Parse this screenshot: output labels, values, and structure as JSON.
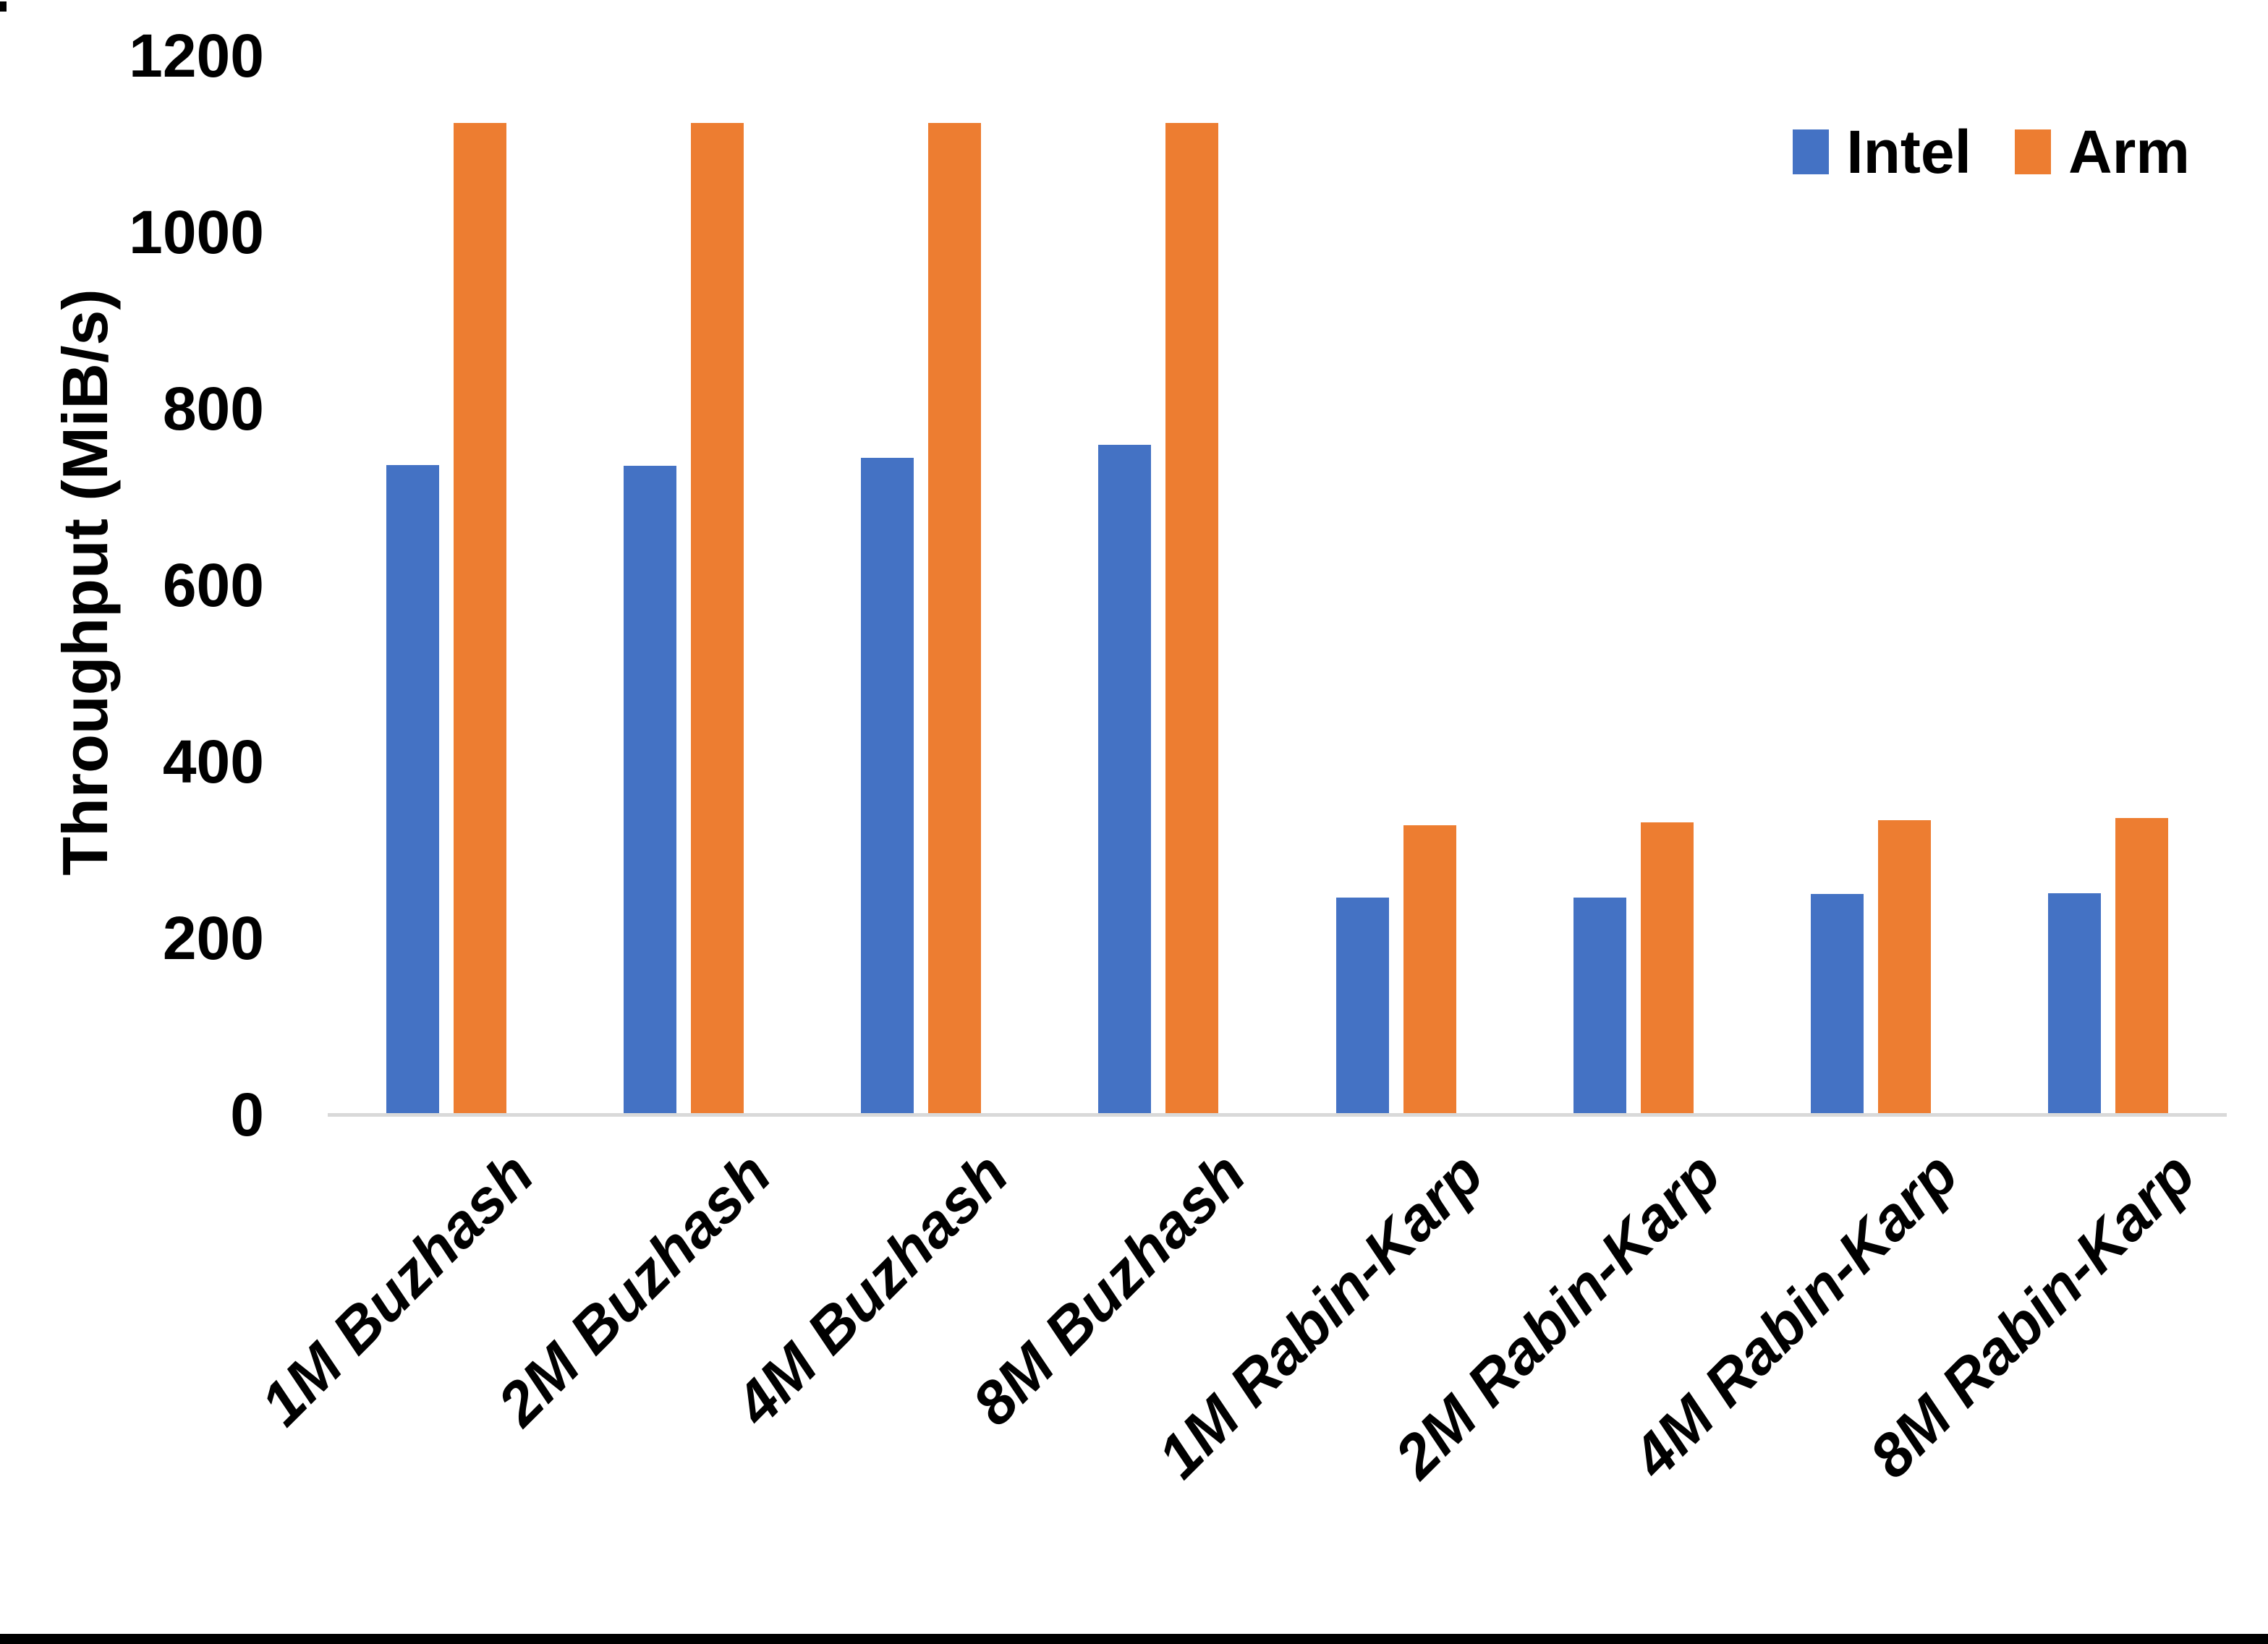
{
  "chart_data": {
    "type": "bar",
    "title": "",
    "xlabel": "",
    "ylabel": "Throughput (MiB/s)",
    "categories": [
      "1M Buzhash",
      "2M Buzhash",
      "4M Buzhash",
      "8M Buzhash",
      "1M Rabin-Karp",
      "2M Rabin-Karp",
      "4M Rabin-Karp",
      "8M Rabin-Karp"
    ],
    "series": [
      {
        "name": "Intel",
        "color": "#4472C4",
        "values": [
          736,
          735,
          744,
          759,
          246,
          246,
          250,
          251
        ]
      },
      {
        "name": "Arm",
        "color": "#ED7D31",
        "values": [
          1124,
          1124,
          1124,
          1124,
          328,
          331,
          334,
          336
        ]
      }
    ],
    "ylim": [
      0,
      1200
    ],
    "ytick_step": 200,
    "ytick_labels": [
      "0",
      "200",
      "400",
      "600",
      "800",
      "1000",
      "1200"
    ],
    "grid": false,
    "legend_position": "top-right"
  },
  "colors": {
    "axis_line": "#D9D9D9",
    "text": "#000000",
    "background": "#FFFFFF",
    "bottom_bar": "#000000"
  }
}
